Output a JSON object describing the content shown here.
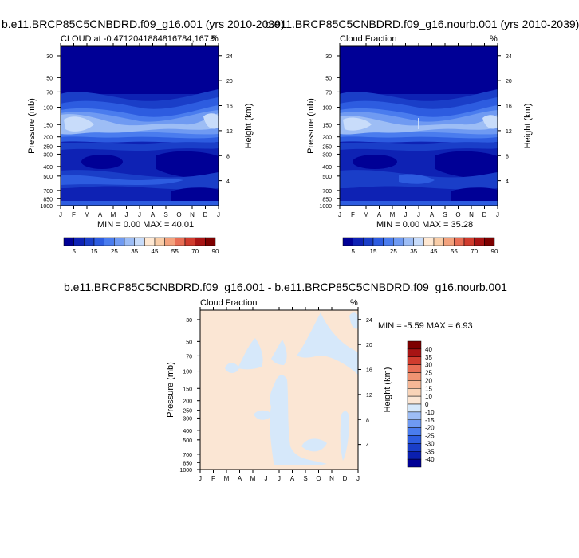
{
  "colors": {
    "levels": [
      "#000096",
      "#0e22b4",
      "#1a3ec8",
      "#2d5ce0",
      "#4a7cee",
      "#6f9af2",
      "#9dbdf5",
      "#c8dcfa",
      "#ffe8d2",
      "#f9cda8",
      "#f3a27d",
      "#e86e55",
      "#d03c2e",
      "#a81414",
      "#7d0000"
    ],
    "diff_levels": [
      "#000096",
      "#0a1fb0",
      "#1a3ec8",
      "#2d5ce0",
      "#4a7cee",
      "#6f9af2",
      "#9dbdf5",
      "#d6e8fa",
      "#fbe6d4",
      "#f9d4b8",
      "#f6b796",
      "#f09372",
      "#e86e55",
      "#d03c2e",
      "#a81414",
      "#7d0000"
    ]
  },
  "panels": {
    "a": {
      "title": "b.e11.BRCP85C5CNBDRD.f09_g16.001 (yrs 2010-2039)",
      "left_label": "CLOUD at -0.4712041884816784,167.5",
      "right_label": "%",
      "minmax": "MIN =   0.00 MAX =  40.01",
      "ylabel": "Pressure (mb)",
      "ylabel2": "Height (km)"
    },
    "b": {
      "title": "b.e11.BRCP85C5CNBDRD.f09_g16.nourb.001 (yrs 2010-2039)",
      "left_label": "Cloud Fraction",
      "right_label": "%",
      "minmax": "MIN =   0.00 MAX =  35.28",
      "ylabel": "Pressure (mb)",
      "ylabel2": "Height (km)"
    },
    "c": {
      "title": "b.e11.BRCP85C5CNBDRD.f09_g16.001 - b.e11.BRCP85C5CNBDRD.f09_g16.nourb.001",
      "left_label": "Cloud Fraction",
      "right_label": "%",
      "minmax": "MIN =  -5.59 MAX =   6.93",
      "ylabel": "Pressure (mb)",
      "ylabel2": "Height (km)"
    }
  },
  "chart_data": [
    {
      "type": "heatmap",
      "title": "b.e11.BRCP85C5CNBDRD.f09_g16.001 (yrs 2010-2039)",
      "xlabel": "",
      "ylabel": "Pressure (mb)",
      "ylabel_right": "Height (km)",
      "x": [
        "J",
        "F",
        "M",
        "A",
        "M",
        "J",
        "J",
        "A",
        "S",
        "O",
        "N",
        "D",
        "J"
      ],
      "y_ticks": [
        30,
        50,
        70,
        100,
        150,
        200,
        250,
        300,
        400,
        500,
        700,
        850,
        1000
      ],
      "y_right_ticks": [
        24,
        20,
        16,
        12,
        8,
        4
      ],
      "y_scale": "log",
      "y_reversed": true,
      "colorbar_labels": [
        5,
        15,
        25,
        35,
        45,
        55,
        70,
        90
      ],
      "min": 0.0,
      "max": 40.01
    },
    {
      "type": "heatmap",
      "title": "b.e11.BRCP85C5CNBDRD.f09_g16.nourb.001 (yrs 2010-2039)",
      "xlabel": "",
      "ylabel": "Pressure (mb)",
      "ylabel_right": "Height (km)",
      "x": [
        "J",
        "F",
        "M",
        "A",
        "M",
        "J",
        "J",
        "A",
        "S",
        "O",
        "N",
        "D",
        "J"
      ],
      "y_ticks": [
        30,
        50,
        70,
        100,
        150,
        200,
        250,
        300,
        400,
        500,
        700,
        850,
        1000
      ],
      "y_right_ticks": [
        24,
        20,
        16,
        12,
        8,
        4
      ],
      "y_scale": "log",
      "y_reversed": true,
      "colorbar_labels": [
        5,
        15,
        25,
        35,
        45,
        55,
        70,
        90
      ],
      "min": 0.0,
      "max": 35.28
    },
    {
      "type": "heatmap",
      "title": "b.e11.BRCP85C5CNBDRD.f09_g16.001 - b.e11.BRCP85C5CNBDRD.f09_g16.nourb.001",
      "xlabel": "",
      "ylabel": "Pressure (mb)",
      "ylabel_right": "Height (km)",
      "x": [
        "J",
        "F",
        "M",
        "A",
        "M",
        "J",
        "J",
        "A",
        "S",
        "O",
        "N",
        "D",
        "J"
      ],
      "y_ticks": [
        30,
        50,
        70,
        100,
        150,
        200,
        250,
        300,
        400,
        500,
        700,
        850,
        1000
      ],
      "y_right_ticks": [
        24,
        20,
        16,
        12,
        8,
        4
      ],
      "y_scale": "log",
      "y_reversed": true,
      "colorbar_labels": [
        40,
        35,
        30,
        25,
        20,
        15,
        10,
        0,
        -10,
        -15,
        -20,
        -25,
        -30,
        -35,
        -40
      ],
      "min": -5.59,
      "max": 6.93
    }
  ]
}
